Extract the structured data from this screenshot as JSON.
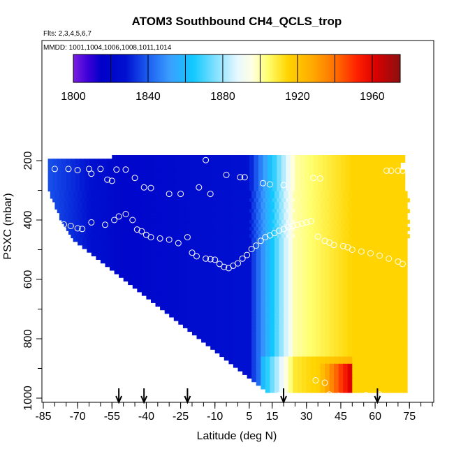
{
  "chart_data": {
    "type": "heatmap",
    "title": "ATOM3 Southbound CH4_QCLS_trop",
    "flights_note": "Flts: 2,3,4,5,6,7",
    "dates_note": "MMDD: 1001,1004,1006,1008,1011,1014",
    "xlabel": "Latitude (deg N)",
    "ylabel": "PSXC (mbar)",
    "xlim": [
      -85,
      85
    ],
    "ylim": [
      1000,
      100
    ],
    "x_ticks": [
      -85,
      -70,
      -55,
      -40,
      -25,
      -10,
      5,
      15,
      30,
      45,
      60,
      75
    ],
    "y_ticks": [
      200,
      400,
      600,
      800,
      1000
    ],
    "colorbar": {
      "range": [
        1800,
        1975
      ],
      "ticks": [
        1800,
        1840,
        1880,
        1920,
        1960
      ],
      "stops": [
        {
          "v": 1800,
          "c": "#7a1fe0"
        },
        {
          "v": 1808,
          "c": "#3b00d8"
        },
        {
          "v": 1815,
          "c": "#0000c8"
        },
        {
          "v": 1828,
          "c": "#0010d0"
        },
        {
          "v": 1840,
          "c": "#1c5ef0"
        },
        {
          "v": 1852,
          "c": "#3aa0ff"
        },
        {
          "v": 1864,
          "c": "#10c8ff"
        },
        {
          "v": 1876,
          "c": "#80e0ff"
        },
        {
          "v": 1888,
          "c": "#e8f8ff"
        },
        {
          "v": 1896,
          "c": "#ffffe0"
        },
        {
          "v": 1904,
          "c": "#ffff70"
        },
        {
          "v": 1915,
          "c": "#ffd400"
        },
        {
          "v": 1928,
          "c": "#ffaa00"
        },
        {
          "v": 1940,
          "c": "#ff7000"
        },
        {
          "v": 1952,
          "c": "#ff2000"
        },
        {
          "v": 1962,
          "c": "#d80000"
        },
        {
          "v": 1975,
          "c": "#8a1010"
        }
      ]
    },
    "profile_latitudes": [
      -52,
      -41,
      -22,
      20,
      61
    ],
    "field": {
      "lat_start": -85,
      "lat_step": 2,
      "press_start": 200,
      "press_step": 25,
      "lat_range_by_level": [
        [
          -55,
          72
        ],
        [
          -83,
          72
        ],
        [
          -83,
          71
        ],
        [
          -83,
          71
        ],
        [
          -83,
          72
        ],
        [
          -83,
          72
        ],
        [
          -83,
          72
        ],
        [
          -83,
          72
        ],
        [
          -83,
          72
        ],
        [
          -83,
          72
        ],
        [
          -82,
          73
        ],
        [
          -82,
          73
        ],
        [
          -81,
          74
        ],
        [
          -80,
          74
        ],
        [
          -80,
          74
        ],
        [
          -79,
          74
        ],
        [
          -78,
          74
        ],
        [
          -78,
          74
        ],
        [
          -77,
          74
        ],
        [
          -76,
          74
        ],
        [
          -75,
          74
        ],
        [
          -74,
          74
        ],
        [
          -73,
          74
        ],
        [
          -72,
          74
        ],
        [
          -70,
          73
        ],
        [
          -68,
          73
        ],
        [
          -66,
          73
        ],
        [
          -64,
          73
        ],
        [
          -62,
          73
        ],
        [
          -60,
          73
        ],
        [
          -58,
          73
        ],
        [
          -56,
          73
        ],
        [
          -54,
          73
        ],
        [
          -52,
          73
        ],
        [
          -50,
          73
        ],
        [
          -48,
          73
        ],
        [
          -46,
          73
        ],
        [
          -44,
          73
        ],
        [
          -42,
          73
        ],
        [
          -40,
          73
        ],
        [
          -38,
          73
        ],
        [
          -36,
          73
        ],
        [
          -34,
          73
        ],
        [
          -32,
          73
        ],
        [
          -30,
          73
        ],
        [
          -28,
          73
        ],
        [
          -26,
          73
        ],
        [
          -24,
          73
        ],
        [
          -22,
          73
        ],
        [
          -20,
          73
        ],
        [
          -18,
          73
        ],
        [
          -16,
          73
        ],
        [
          -14,
          73
        ],
        [
          -12,
          73
        ],
        [
          -10,
          73
        ],
        [
          -8,
          73
        ],
        [
          -6,
          73
        ],
        [
          -4,
          73
        ],
        [
          -2,
          73
        ],
        [
          0,
          73
        ],
        [
          2,
          73
        ],
        [
          4,
          73
        ],
        [
          6,
          73
        ],
        [
          8,
          73
        ],
        [
          10,
          73
        ],
        [
          12,
          73
        ]
      ],
      "note": "Field values are derived on the page from a latitudinal gradient model"
    },
    "sample_points": [
      [
        -83,
        230
      ],
      [
        -75,
        230
      ],
      [
        -72,
        235
      ],
      [
        -68,
        230
      ],
      [
        -64,
        232
      ],
      [
        -60,
        232
      ],
      [
        -54,
        230
      ],
      [
        -48,
        232
      ],
      [
        -40,
        226
      ],
      [
        -34,
        228
      ],
      [
        -26,
        230
      ],
      [
        -20,
        232
      ],
      [
        -82,
        262
      ],
      [
        -76,
        264
      ],
      [
        -70,
        258
      ],
      [
        -66,
        262
      ],
      [
        -62,
        270
      ],
      [
        -58,
        274
      ],
      [
        -50,
        266
      ],
      [
        -45,
        262
      ],
      [
        -36,
        270
      ],
      [
        -30,
        268
      ],
      [
        -24,
        284
      ],
      [
        -16,
        288
      ],
      [
        -8,
        268
      ],
      [
        2,
        268
      ],
      [
        8,
        266
      ],
      [
        14,
        272
      ],
      [
        18,
        282
      ],
      [
        24,
        276
      ],
      [
        36,
        282
      ],
      [
        44,
        290
      ],
      [
        50,
        290
      ],
      [
        55,
        290
      ],
      [
        60,
        292
      ],
      [
        66,
        262
      ],
      [
        -80,
        300
      ],
      [
        -74,
        304
      ],
      [
        -66,
        300
      ],
      [
        -62,
        310
      ],
      [
        -58,
        320
      ],
      [
        -52,
        330
      ],
      [
        -44,
        322
      ],
      [
        -40,
        310
      ],
      [
        -30,
        318
      ],
      [
        -24,
        312
      ],
      [
        -14,
        322
      ],
      [
        -6,
        318
      ],
      [
        4,
        318
      ],
      [
        12,
        328
      ],
      [
        18,
        332
      ],
      [
        26,
        324
      ],
      [
        34,
        320
      ],
      [
        42,
        322
      ],
      [
        48,
        322
      ],
      [
        56,
        330
      ],
      [
        64,
        328
      ],
      [
        70,
        324
      ],
      [
        -82,
        360
      ],
      [
        -76,
        366
      ],
      [
        -70,
        370
      ],
      [
        -66,
        378
      ],
      [
        -60,
        380
      ],
      [
        -54,
        386
      ],
      [
        -48,
        386
      ],
      [
        -42,
        380
      ],
      [
        -34,
        390
      ],
      [
        -26,
        386
      ],
      [
        -20,
        380
      ],
      [
        -12,
        386
      ],
      [
        -4,
        390
      ],
      [
        6,
        386
      ],
      [
        14,
        384
      ],
      [
        20,
        382
      ],
      [
        30,
        380
      ],
      [
        38,
        382
      ],
      [
        46,
        384
      ],
      [
        52,
        384
      ],
      [
        58,
        392
      ],
      [
        68,
        390
      ]
    ],
    "circles": [
      [
        -80,
        228
      ],
      [
        -74,
        228
      ],
      [
        -70,
        232
      ],
      [
        -65,
        228
      ],
      [
        -64,
        244
      ],
      [
        -60,
        228
      ],
      [
        -57,
        264
      ],
      [
        -55,
        268
      ],
      [
        -53,
        230
      ],
      [
        -49,
        230
      ],
      [
        -45,
        258
      ],
      [
        -41,
        290
      ],
      [
        -38,
        292
      ],
      [
        -30,
        312
      ],
      [
        -25,
        312
      ],
      [
        -17,
        290
      ],
      [
        -14,
        198
      ],
      [
        -12,
        312
      ],
      [
        -5,
        248
      ],
      [
        1,
        256
      ],
      [
        3,
        256
      ],
      [
        11,
        276
      ],
      [
        14,
        280
      ],
      [
        20,
        282
      ],
      [
        33,
        258
      ],
      [
        36,
        260
      ],
      [
        65,
        234
      ],
      [
        67,
        234
      ],
      [
        70,
        234
      ],
      [
        72,
        234
      ],
      [
        -82,
        418
      ],
      [
        -79,
        428
      ],
      [
        -76,
        415
      ],
      [
        -73,
        420
      ],
      [
        -70,
        428
      ],
      [
        -68,
        430
      ],
      [
        -64,
        408
      ],
      [
        -58,
        416
      ],
      [
        -54,
        400
      ],
      [
        -52,
        388
      ],
      [
        -49,
        380
      ],
      [
        -46,
        400
      ],
      [
        -44,
        432
      ],
      [
        -42,
        438
      ],
      [
        -40,
        450
      ],
      [
        -38,
        458
      ],
      [
        -34,
        462
      ],
      [
        -30,
        466
      ],
      [
        -26,
        478
      ],
      [
        -22,
        458
      ],
      [
        -20,
        510
      ],
      [
        -18,
        522
      ],
      [
        -14,
        530
      ],
      [
        -12,
        532
      ],
      [
        -10,
        534
      ],
      [
        -8,
        548
      ],
      [
        -6,
        558
      ],
      [
        -4,
        562
      ],
      [
        -2,
        554
      ],
      [
        0,
        546
      ],
      [
        2,
        530
      ],
      [
        4,
        518
      ],
      [
        6,
        498
      ],
      [
        8,
        486
      ],
      [
        10,
        470
      ],
      [
        12,
        458
      ],
      [
        14,
        452
      ],
      [
        16,
        444
      ],
      [
        18,
        436
      ],
      [
        20,
        430
      ],
      [
        22,
        424
      ],
      [
        24,
        420
      ],
      [
        26,
        416
      ],
      [
        28,
        412
      ],
      [
        30,
        408
      ],
      [
        32,
        404
      ],
      [
        35,
        456
      ],
      [
        38,
        470
      ],
      [
        40,
        476
      ],
      [
        42,
        484
      ],
      [
        46,
        488
      ],
      [
        48,
        492
      ],
      [
        50,
        500
      ],
      [
        54,
        506
      ],
      [
        58,
        512
      ],
      [
        62,
        520
      ],
      [
        66,
        530
      ],
      [
        70,
        540
      ],
      [
        72,
        548
      ],
      [
        -80,
        950
      ],
      [
        -75,
        954
      ],
      [
        -72,
        946
      ],
      [
        -70,
        960
      ],
      [
        -67,
        946
      ],
      [
        -63,
        958
      ],
      [
        -60,
        946
      ],
      [
        -57,
        940
      ],
      [
        -55,
        964
      ],
      [
        -49,
        960
      ],
      [
        -46,
        956
      ],
      [
        -43,
        986
      ],
      [
        -38,
        988
      ],
      [
        -33,
        982
      ],
      [
        -30,
        990
      ],
      [
        -26,
        994
      ],
      [
        -18,
        988
      ],
      [
        -10,
        992
      ],
      [
        -4,
        990
      ],
      [
        0,
        986
      ],
      [
        4,
        992
      ],
      [
        8,
        994
      ],
      [
        14,
        994
      ],
      [
        18,
        990
      ],
      [
        22,
        996
      ],
      [
        34,
        940
      ],
      [
        38,
        948
      ],
      [
        40,
        988
      ],
      [
        44,
        992
      ],
      [
        50,
        994
      ],
      [
        56,
        990
      ],
      [
        62,
        988
      ]
    ]
  }
}
